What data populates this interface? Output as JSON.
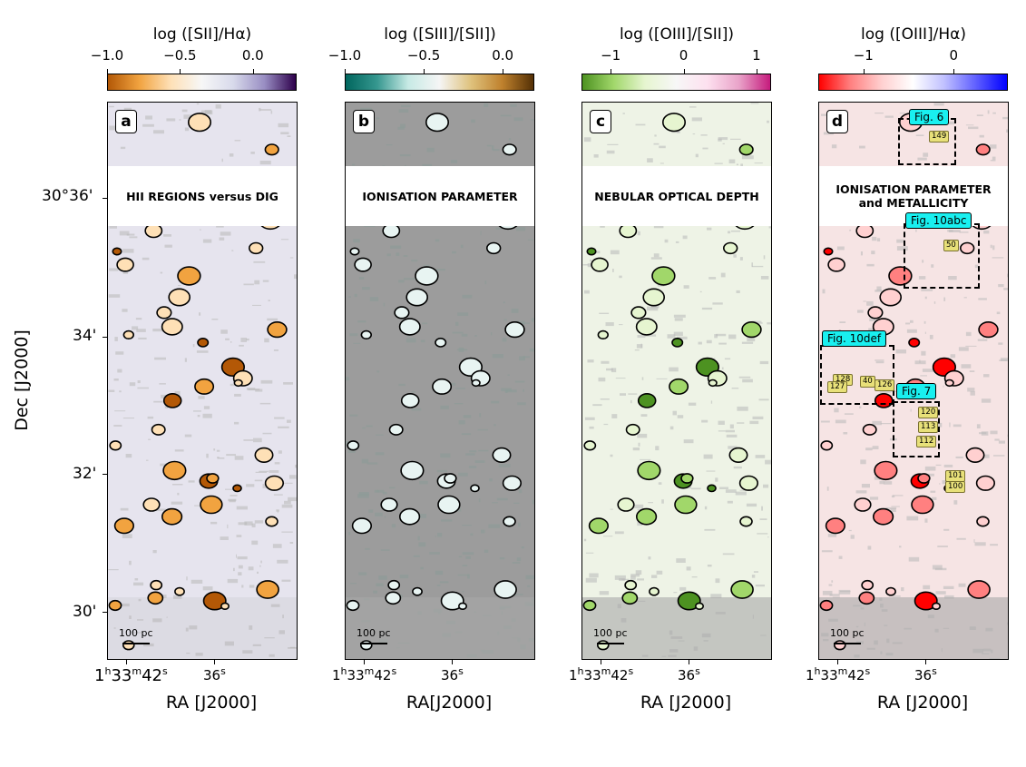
{
  "y_axis": {
    "title": "Dec [J2000]",
    "ticks": [
      "30°36'",
      "34'",
      "32'",
      "30'"
    ]
  },
  "panels": [
    {
      "letter": "a",
      "band_text": "HII REGIONS versus DIG",
      "cbar_label": "log ([SII]/Hα)",
      "cbar_ticks": [
        "−1.0",
        "−0.5",
        "0.0"
      ],
      "xlabel": "RA [J2000]",
      "xticks": [
        "1h33m42s",
        "36s"
      ],
      "colors": [
        "#b35806",
        "#f1a340",
        "#fee0b6",
        "#f7f7f7",
        "#d8daeb",
        "#998ec3",
        "#2d004b"
      ]
    },
    {
      "letter": "b",
      "band_text": "IONISATION PARAMETER",
      "cbar_label": "log ([SIII]/[SII])",
      "cbar_ticks": [
        "−1.0",
        "−0.5",
        "0.0"
      ],
      "xlabel": "RA[J2000]",
      "xticks": [
        "1h33m42s",
        "36s"
      ],
      "colors": [
        "#01665e",
        "#35978f",
        "#c7eae5",
        "#f5f5f5",
        "#dfc27d",
        "#bf812d",
        "#543005"
      ]
    },
    {
      "letter": "c",
      "band_text": "NEBULAR OPTICAL DEPTH",
      "cbar_label": "log ([OIII]/[SII])",
      "cbar_ticks": [
        "−1",
        "0",
        "1"
      ],
      "xlabel": "RA [J2000]",
      "xticks": [
        "1h33m42s",
        "36s"
      ],
      "colors": [
        "#4d9221",
        "#a1d76a",
        "#e6f5d0",
        "#f7f7f7",
        "#fde0ef",
        "#e9a3c9",
        "#c51b7d"
      ]
    },
    {
      "letter": "d",
      "band_text": "IONISATION PARAMETER\nand METALLICITY",
      "cbar_label": "log ([OIII]/Hα)",
      "cbar_ticks": [
        "−1",
        "0"
      ],
      "xlabel": "RA [J2000]",
      "xticks": [
        "1h33m42s",
        "36s"
      ],
      "colors": [
        "#ff0000",
        "#ff8080",
        "#ffd0d0",
        "#ffffff",
        "#c0c0ff",
        "#6060ff",
        "#0000ff"
      ]
    }
  ],
  "scalebar_label": "100 pc",
  "zoom_boxes": [
    "Fig. 6",
    "Fig. 10abc",
    "Fig. 10def",
    "Fig. 7"
  ],
  "region_ids": [
    "149",
    "50",
    "128",
    "127",
    "40",
    "126",
    "120",
    "113",
    "112",
    "101",
    "100"
  ],
  "chart_data": [
    {
      "type": "heatmap",
      "title": "HII REGIONS versus DIG",
      "colorbar": "log ([SII]/Hα)",
      "clim": [
        -1.0,
        0.3
      ],
      "xlabel": "RA [J2000]",
      "ylabel": "Dec [J2000]"
    },
    {
      "type": "heatmap",
      "title": "IONISATION PARAMETER",
      "colorbar": "log ([SIII]/[SII])",
      "clim": [
        -1.0,
        0.2
      ],
      "xlabel": "RA[J2000]",
      "ylabel": ""
    },
    {
      "type": "heatmap",
      "title": "NEBULAR OPTICAL DEPTH",
      "colorbar": "log ([OIII]/[SII])",
      "clim": [
        -1.4,
        1.2
      ],
      "xlabel": "RA [J2000]",
      "ylabel": ""
    },
    {
      "type": "heatmap",
      "title": "IONISATION PARAMETER and METALLICITY",
      "colorbar": "log ([OIII]/Hα)",
      "clim": [
        -1.5,
        0.6
      ],
      "xlabel": "RA [J2000]",
      "ylabel": ""
    }
  ]
}
